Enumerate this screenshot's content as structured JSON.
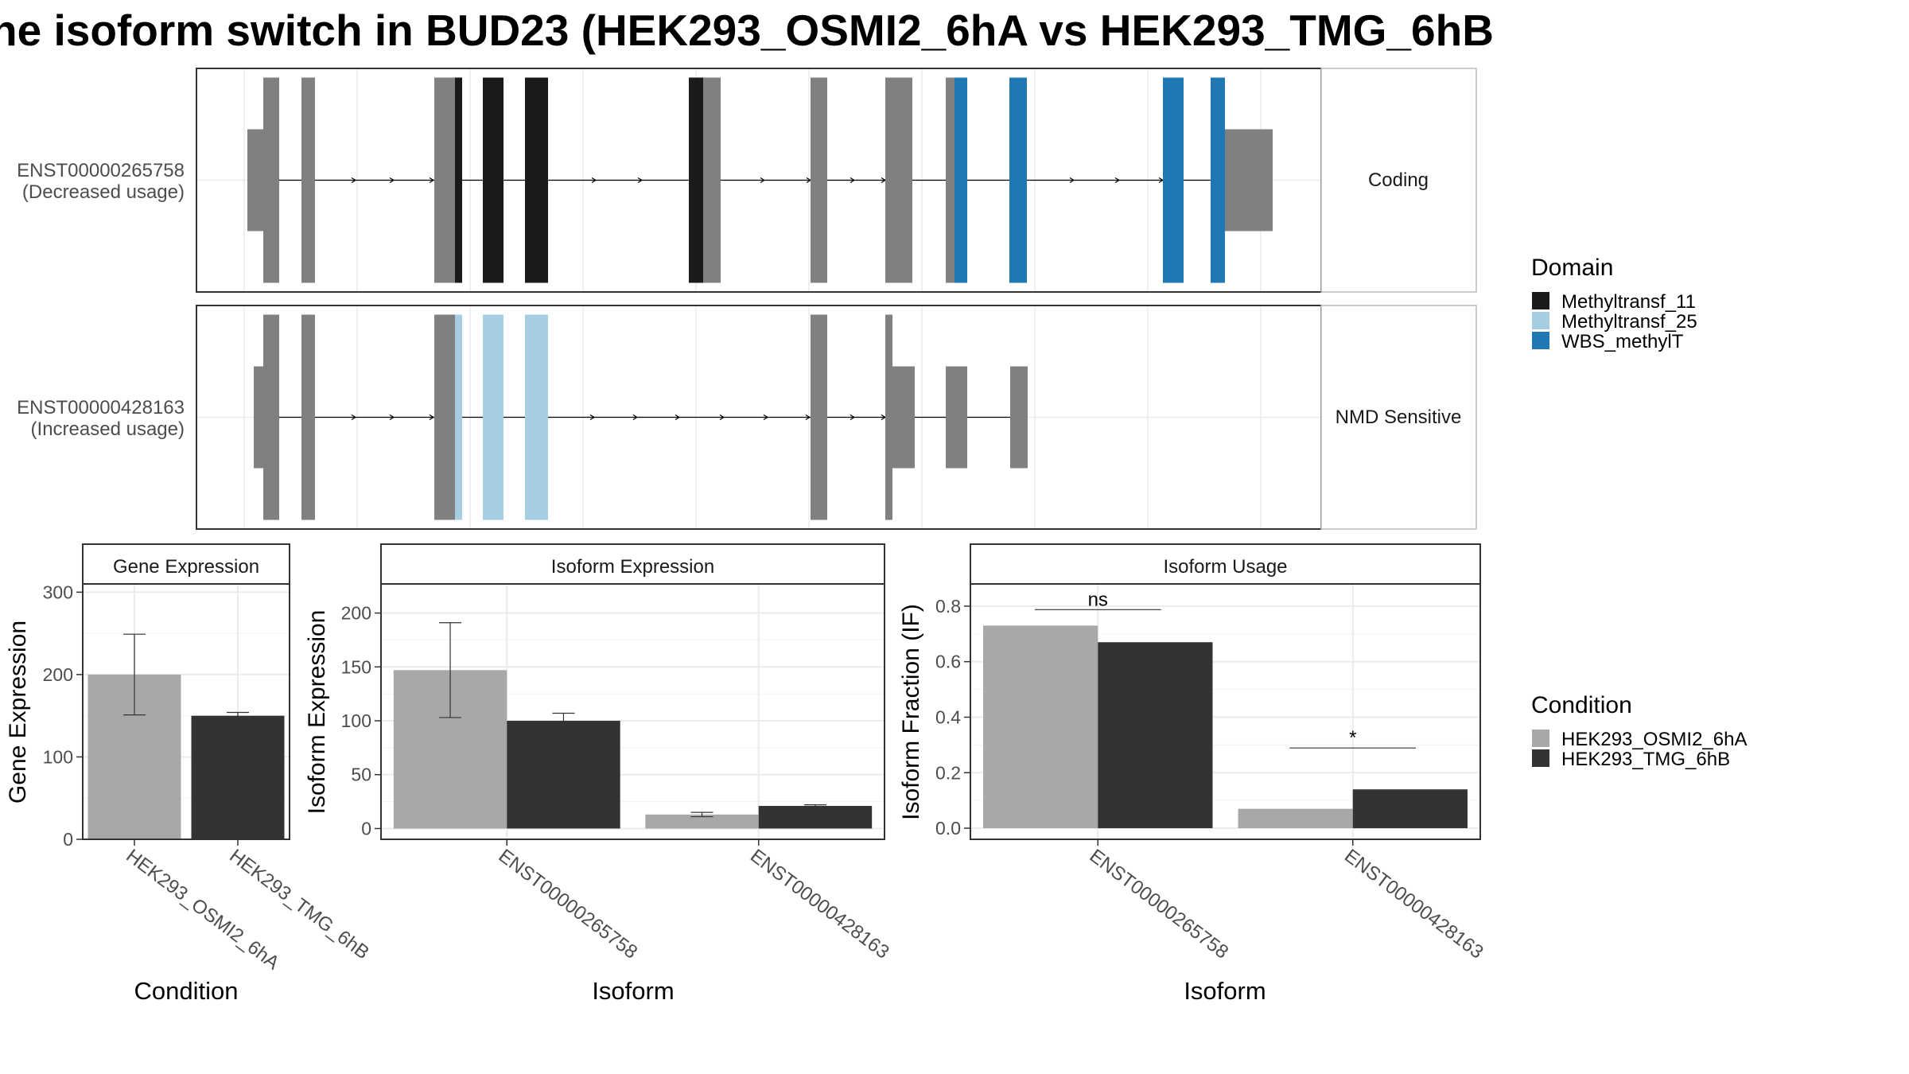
{
  "title": "he isoform switch in BUD23 (HEK293_OSMI2_6hA vs HEK293_TMG_6hB",
  "colors": {
    "exon": "#808080",
    "intron": "#000000",
    "panel_border": "#333333",
    "strip_border": "#bbbbbb",
    "grid": "#ebebeb",
    "cond_a": "#a8a8a8",
    "cond_b": "#333333",
    "Methyltransf_11": "#1a1a1a",
    "Methyltransf_25": "#a6cee3",
    "WBS_methylT": "#1f78b4"
  },
  "legend_domain": {
    "title": "Domain",
    "items": [
      {
        "label": "Methyltransf_11",
        "color": "#1a1a1a"
      },
      {
        "label": "Methyltransf_25",
        "color": "#a6cee3"
      },
      {
        "label": "WBS_methylT",
        "color": "#1f78b4"
      }
    ]
  },
  "legend_condition": {
    "title": "Condition",
    "items": [
      {
        "label": "HEK293_OSMI2_6hA",
        "color": "#a8a8a8"
      },
      {
        "label": "HEK293_TMG_6hB",
        "color": "#333333"
      }
    ]
  },
  "chart_data": [
    {
      "type": "gene_structure",
      "transcripts": [
        {
          "id": "ENST00000265758",
          "usage": "(Decreased usage)",
          "strip": "Coding"
        },
        {
          "id": "ENST00000428163",
          "usage": "(Increased usage)",
          "strip": "NMD Sensitive"
        }
      ]
    },
    {
      "type": "bar",
      "title": "Gene Expression",
      "xlabel": "Condition",
      "ylabel": "Gene Expression",
      "categories": [
        "HEK293_OSMI2_6hA",
        "HEK293_TMG_6hB"
      ],
      "values": [
        200,
        150
      ],
      "errors": [
        [
          151,
          249
        ],
        [
          146,
          154
        ]
      ],
      "ylim": [
        0,
        310
      ],
      "yticks": [
        0,
        100,
        200,
        300
      ]
    },
    {
      "type": "bar",
      "title": "Isoform Expression",
      "xlabel": "Isoform",
      "ylabel": "Isoform Expression",
      "categories": [
        "ENST00000265758",
        "ENST00000428163"
      ],
      "series": [
        {
          "name": "HEK293_OSMI2_6hA",
          "values": [
            147,
            13
          ],
          "errors": [
            [
              103,
              191
            ],
            [
              11,
              15
            ]
          ]
        },
        {
          "name": "HEK293_TMG_6hB",
          "values": [
            100,
            21
          ],
          "errors": [
            [
              93,
              107
            ],
            [
              19,
              22
            ]
          ]
        }
      ],
      "ylim": [
        -10,
        227
      ],
      "yticks": [
        0,
        50,
        100,
        150,
        200
      ]
    },
    {
      "type": "bar",
      "title": "Isoform Usage",
      "xlabel": "Isoform",
      "ylabel": "Isoform Fraction (IF)",
      "categories": [
        "ENST00000265758",
        "ENST00000428163"
      ],
      "series": [
        {
          "name": "HEK293_OSMI2_6hA",
          "values": [
            0.73,
            0.07
          ]
        },
        {
          "name": "HEK293_TMG_6hB",
          "values": [
            0.67,
            0.14
          ]
        }
      ],
      "significance": [
        "ns",
        "*"
      ],
      "ylim": [
        -0.04,
        0.88
      ],
      "yticks": [
        "0.0",
        "0.2",
        "0.4",
        "0.6",
        "0.8"
      ]
    }
  ]
}
